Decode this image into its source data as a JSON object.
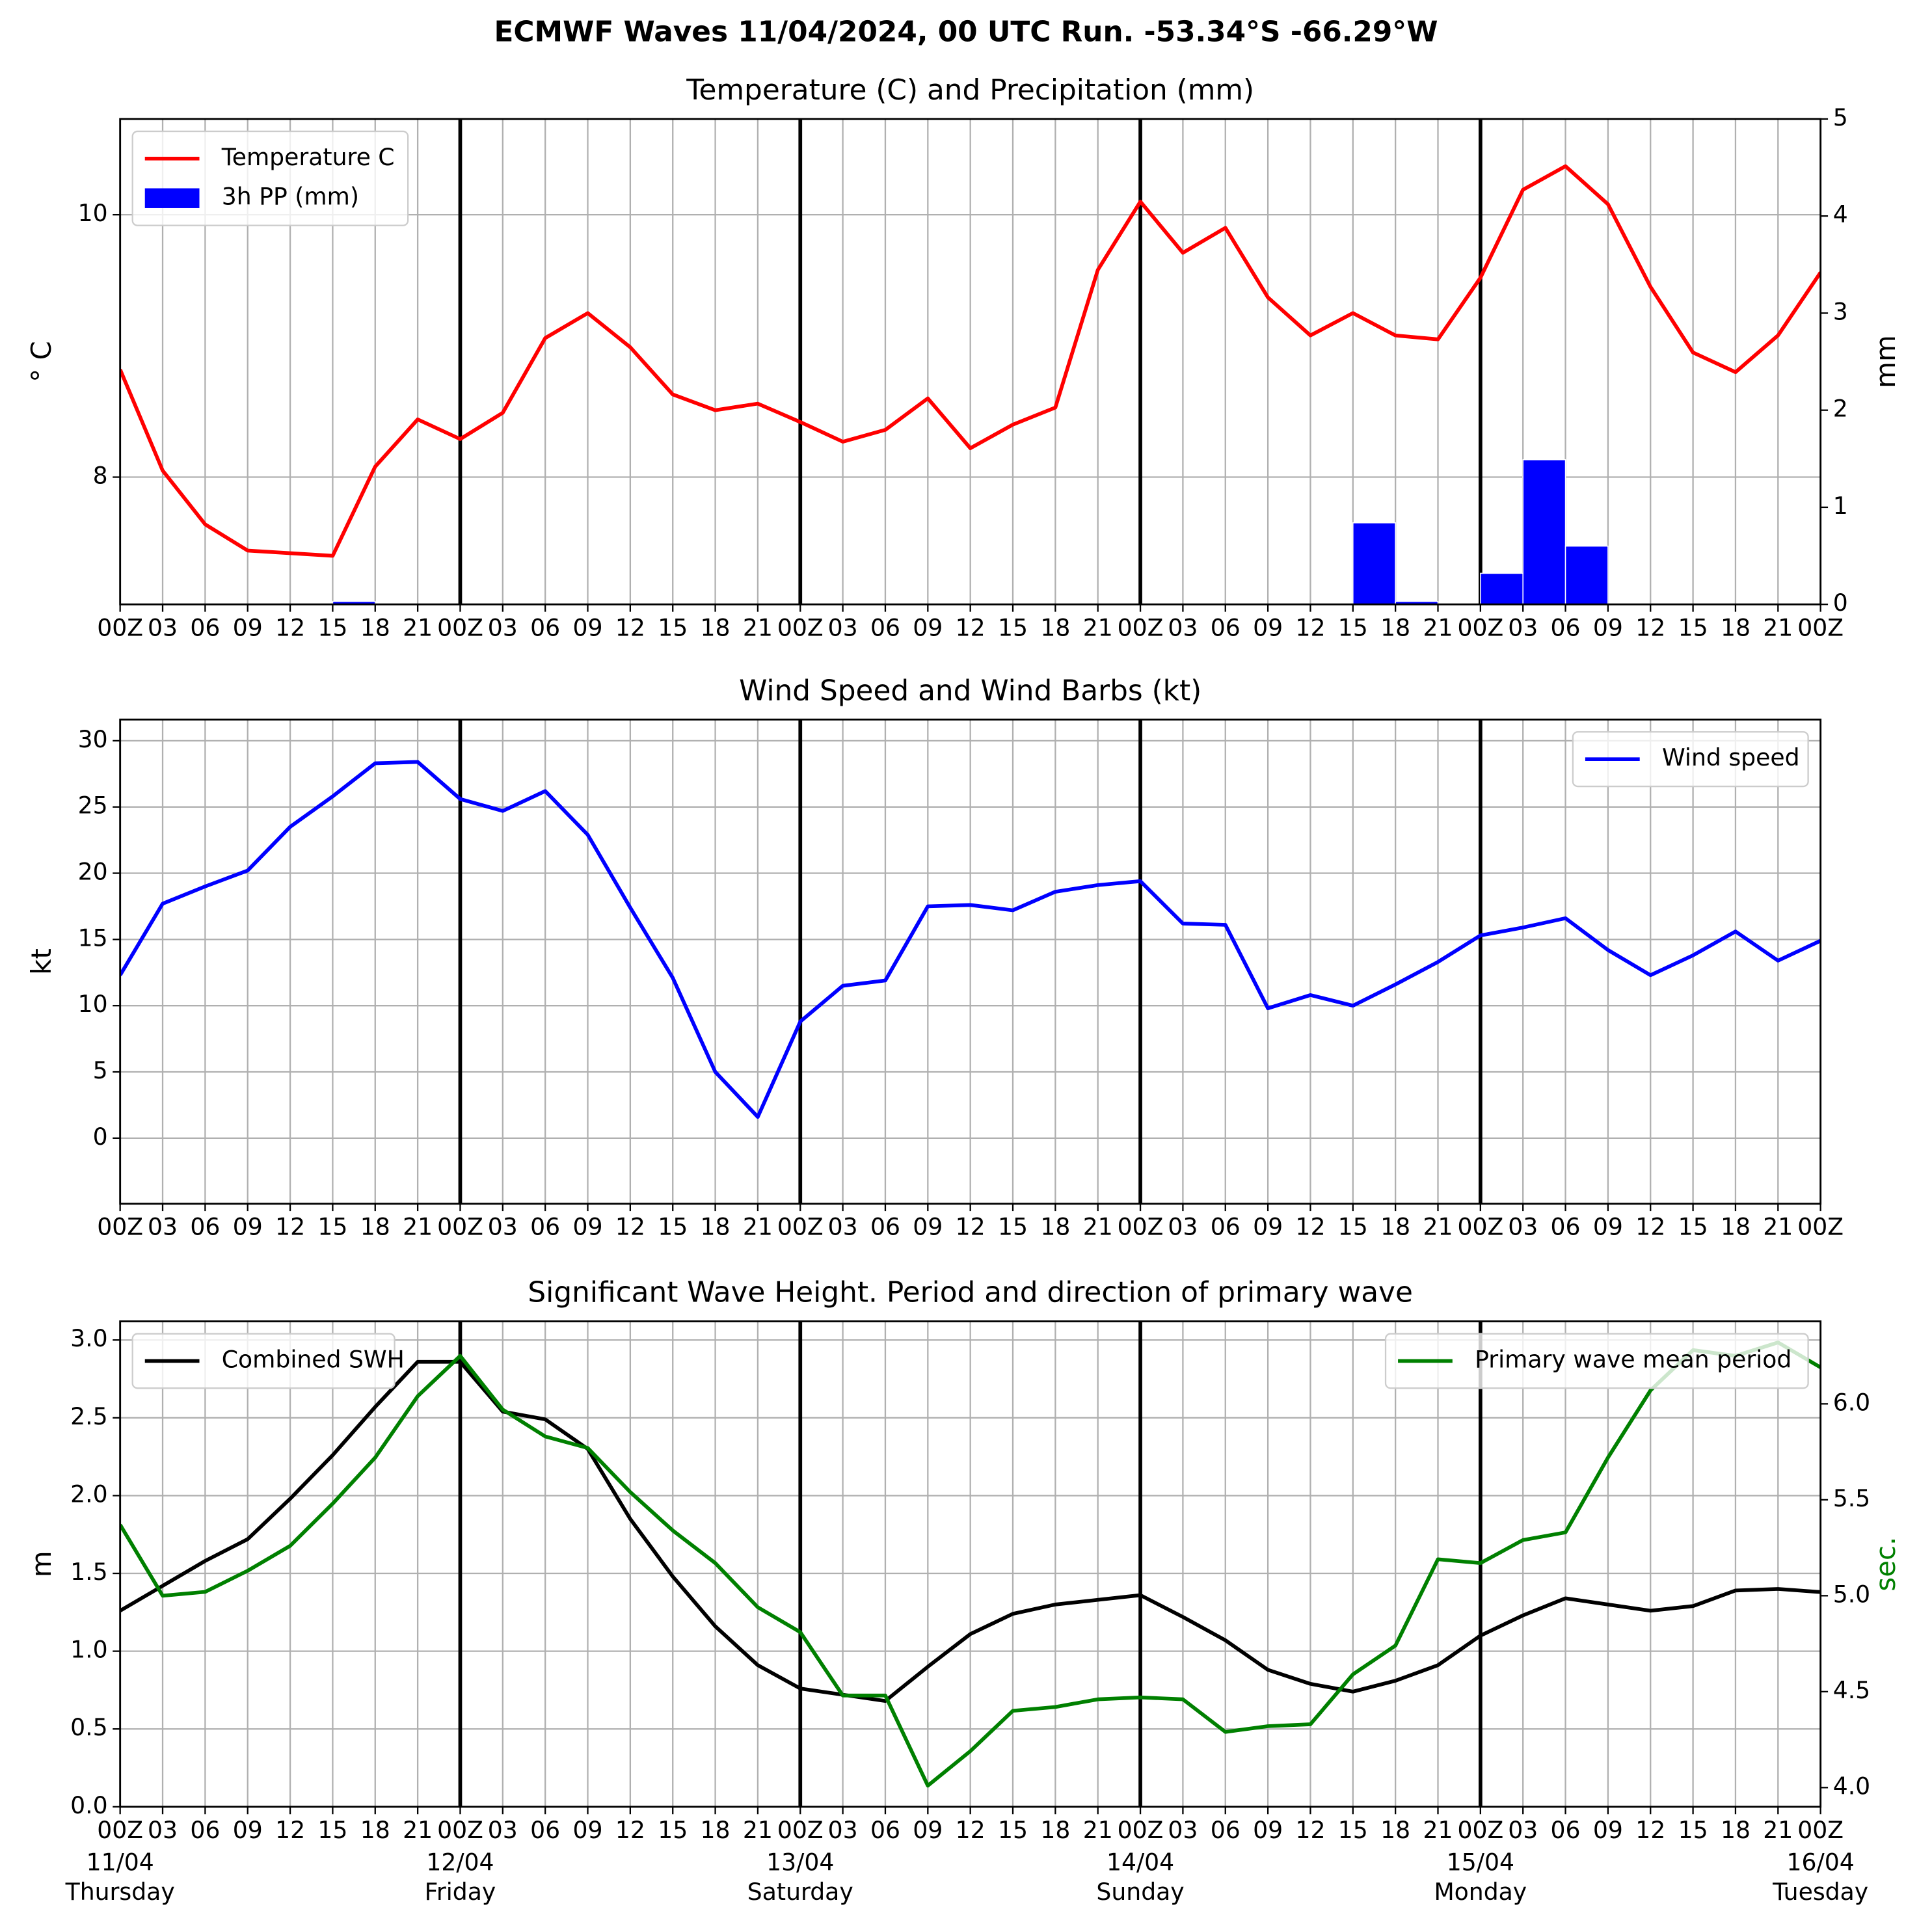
{
  "title": "ECMWF Waves 11/04/2024, 00 UTC Run. -53.34°S -66.29°W",
  "chart_data": [
    {
      "type": "line",
      "title": "Temperature (C) and Precipitation (mm)",
      "ylabel": "$^\\circ$C",
      "y2label": "mm",
      "categories": [
        "00Z",
        "03",
        "06",
        "09",
        "12",
        "15",
        "18",
        "21",
        "00Z",
        "03",
        "06",
        "09",
        "12",
        "15",
        "18",
        "21",
        "00Z",
        "03",
        "06",
        "09",
        "12",
        "15",
        "18",
        "21",
        "00Z",
        "03",
        "06",
        "09",
        "12",
        "15",
        "18",
        "21",
        "00Z",
        "03",
        "06",
        "09",
        "12",
        "15",
        "18",
        "21",
        "00Z"
      ],
      "ylim": [
        7.03,
        10.73
      ],
      "yticks": [
        8,
        10
      ],
      "y2lim": [
        0,
        5
      ],
      "y2ticks": [
        0,
        1,
        2,
        3,
        4,
        5
      ],
      "grid": true,
      "series": [
        {
          "name": "Temperature C",
          "type": "line",
          "color": "#ff0000",
          "legend": "upper left",
          "values": [
            8.82,
            8.05,
            7.64,
            7.44,
            7.42,
            7.4,
            8.08,
            8.44,
            8.29,
            8.49,
            9.06,
            9.25,
            8.99,
            8.63,
            8.51,
            8.56,
            8.42,
            8.27,
            8.36,
            8.6,
            8.22,
            8.4,
            8.53,
            9.58,
            10.1,
            9.71,
            9.9,
            9.37,
            9.08,
            9.25,
            9.08,
            9.05,
            9.52,
            10.19,
            10.37,
            10.08,
            9.45,
            8.95,
            8.8,
            9.08,
            9.56
          ]
        },
        {
          "name": "3h PP (mm)",
          "type": "bar",
          "axis": "y2",
          "color": "#0000ff",
          "legend": "upper left",
          "values": [
            0,
            0,
            0,
            0,
            0,
            0.03,
            0,
            0,
            0,
            0,
            0,
            0,
            0,
            0,
            0,
            0,
            0,
            0,
            0,
            0,
            0,
            0,
            0,
            0,
            0,
            0,
            0,
            0,
            0,
            0.84,
            0.03,
            0,
            0.32,
            1.49,
            0.6,
            0,
            0,
            0,
            0,
            0,
            0
          ]
        }
      ]
    },
    {
      "type": "line",
      "title": "Wind Speed and Wind Barbs (kt)",
      "ylabel": "kt",
      "categories": [
        "00Z",
        "03",
        "06",
        "09",
        "12",
        "15",
        "18",
        "21",
        "00Z",
        "03",
        "06",
        "09",
        "12",
        "15",
        "18",
        "21",
        "00Z",
        "03",
        "06",
        "09",
        "12",
        "15",
        "18",
        "21",
        "00Z",
        "03",
        "06",
        "09",
        "12",
        "15",
        "18",
        "21",
        "00Z",
        "03",
        "06",
        "09",
        "12",
        "15",
        "18",
        "21",
        "00Z"
      ],
      "ylim": [
        -4.95,
        31.6
      ],
      "yticks": [
        0,
        5,
        10,
        15,
        20,
        25,
        30
      ],
      "grid": true,
      "series": [
        {
          "name": "Wind speed",
          "type": "line",
          "color": "#0000ff",
          "legend": "upper right",
          "values": [
            12.3,
            17.7,
            19.0,
            20.2,
            23.5,
            25.8,
            28.3,
            28.4,
            25.6,
            24.7,
            26.2,
            22.9,
            17.4,
            12.1,
            5.0,
            1.6,
            8.8,
            11.5,
            11.9,
            17.5,
            17.6,
            17.2,
            18.6,
            19.1,
            19.4,
            16.2,
            16.1,
            9.8,
            10.8,
            10.0,
            11.6,
            13.3,
            15.3,
            15.9,
            16.6,
            14.2,
            12.3,
            13.8,
            15.6,
            13.4,
            14.9
          ]
        }
      ]
    },
    {
      "type": "line",
      "title": "Significant Wave Height. Period and direction of primary wave",
      "ylabel": "m",
      "y2label": "sec.",
      "y2color": "#008000",
      "categories": [
        "00Z",
        "03",
        "06",
        "09",
        "12",
        "15",
        "18",
        "21",
        "00Z",
        "03",
        "06",
        "09",
        "12",
        "15",
        "18",
        "21",
        "00Z",
        "03",
        "06",
        "09",
        "12",
        "15",
        "18",
        "21",
        "00Z",
        "03",
        "06",
        "09",
        "12",
        "15",
        "18",
        "21",
        "00Z",
        "03",
        "06",
        "09",
        "12",
        "15",
        "18",
        "21",
        "00Z"
      ],
      "days": [
        {
          "date": "11/04",
          "day": "Thursday"
        },
        {
          "date": "12/04",
          "day": "Friday"
        },
        {
          "date": "13/04",
          "day": "Saturday"
        },
        {
          "date": "14/04",
          "day": "Sunday"
        },
        {
          "date": "15/04",
          "day": "Monday"
        },
        {
          "date": "16/04",
          "day": "Tuesday"
        }
      ],
      "ylim": [
        0,
        3.12
      ],
      "yticks": [
        {
          "value": 0,
          "label": "0.0"
        },
        {
          "value": 0.5,
          "label": "0.5"
        },
        {
          "value": 1,
          "label": "1.0"
        },
        {
          "value": 1.5,
          "label": "1.5"
        },
        {
          "value": 2,
          "label": "2.0"
        },
        {
          "value": 2.5,
          "label": "2.5"
        },
        {
          "value": 3,
          "label": "3.0"
        }
      ],
      "y2lim": [
        3.9,
        6.43
      ],
      "y2ticks": [
        {
          "value": 4,
          "label": "4.0"
        },
        {
          "value": 4.5,
          "label": "4.5"
        },
        {
          "value": 5,
          "label": "5.0"
        },
        {
          "value": 5.5,
          "label": "5.5"
        },
        {
          "value": 6,
          "label": "6.0"
        }
      ],
      "grid": true,
      "series": [
        {
          "name": "Combined SWH",
          "type": "line",
          "color": "#000000",
          "legend": "upper left",
          "values": [
            1.26,
            1.42,
            1.58,
            1.72,
            1.98,
            2.26,
            2.57,
            2.86,
            2.86,
            2.54,
            2.49,
            2.3,
            1.85,
            1.48,
            1.16,
            0.91,
            0.76,
            0.72,
            0.68,
            0.9,
            1.11,
            1.24,
            1.3,
            1.33,
            1.36,
            1.22,
            1.07,
            0.88,
            0.79,
            0.74,
            0.81,
            0.91,
            1.1,
            1.23,
            1.34,
            1.3,
            1.26,
            1.29,
            1.39,
            1.4,
            1.38
          ]
        },
        {
          "name": "Primary wave mean period",
          "type": "line",
          "axis": "y2",
          "color": "#008000",
          "legend": "upper right",
          "values": [
            5.37,
            5.0,
            5.02,
            5.13,
            5.26,
            5.48,
            5.72,
            6.04,
            6.25,
            5.97,
            5.83,
            5.77,
            5.54,
            5.34,
            5.17,
            4.94,
            4.81,
            4.48,
            4.48,
            4.01,
            4.19,
            4.4,
            4.42,
            4.46,
            4.47,
            4.46,
            4.29,
            4.32,
            4.33,
            4.59,
            4.74,
            5.19,
            5.17,
            5.29,
            5.33,
            5.72,
            6.07,
            6.28,
            6.25,
            6.32,
            6.19
          ]
        }
      ]
    }
  ]
}
